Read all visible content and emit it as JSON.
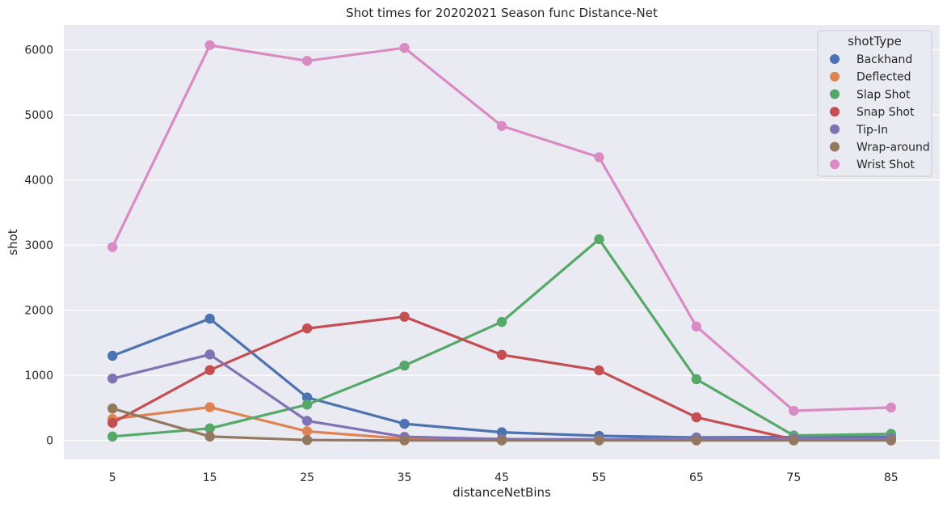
{
  "chart_data": {
    "type": "line",
    "title": "Shot times for 20202021 Season func Distance-Net",
    "xlabel": "distanceNetBins",
    "ylabel": "shot",
    "categories": [
      "5",
      "15",
      "25",
      "35",
      "45",
      "55",
      "65",
      "75",
      "85"
    ],
    "ylim": [
      -290,
      6380
    ],
    "yticks": [
      0,
      1000,
      2000,
      3000,
      4000,
      5000,
      6000
    ],
    "grid": true,
    "legend": {
      "title": "shotType",
      "placement": "top-right"
    },
    "background": "#eaeaf2",
    "series": [
      {
        "name": "Backhand",
        "color": "#4c72b0",
        "values": [
          1300,
          1870,
          660,
          255,
          125,
          70,
          45,
          50,
          55
        ]
      },
      {
        "name": "Deflected",
        "color": "#dd8452",
        "values": [
          330,
          510,
          140,
          25,
          10,
          5,
          5,
          5,
          5
        ]
      },
      {
        "name": "Slap Shot",
        "color": "#55a868",
        "values": [
          60,
          185,
          550,
          1150,
          1820,
          3090,
          940,
          75,
          100
        ]
      },
      {
        "name": "Snap Shot",
        "color": "#c44e52",
        "values": [
          270,
          1080,
          1720,
          1900,
          1315,
          1075,
          355,
          15,
          20
        ]
      },
      {
        "name": "Tip-In",
        "color": "#8172b3",
        "values": [
          950,
          1320,
          300,
          55,
          20,
          15,
          30,
          30,
          30
        ]
      },
      {
        "name": "Wrap-around",
        "color": "#937860",
        "values": [
          490,
          60,
          5,
          0,
          0,
          0,
          0,
          0,
          0
        ]
      },
      {
        "name": "Wrist Shot",
        "color": "#da8bc3",
        "values": [
          2970,
          6070,
          5830,
          6030,
          4830,
          4350,
          1750,
          455,
          505
        ]
      }
    ]
  }
}
